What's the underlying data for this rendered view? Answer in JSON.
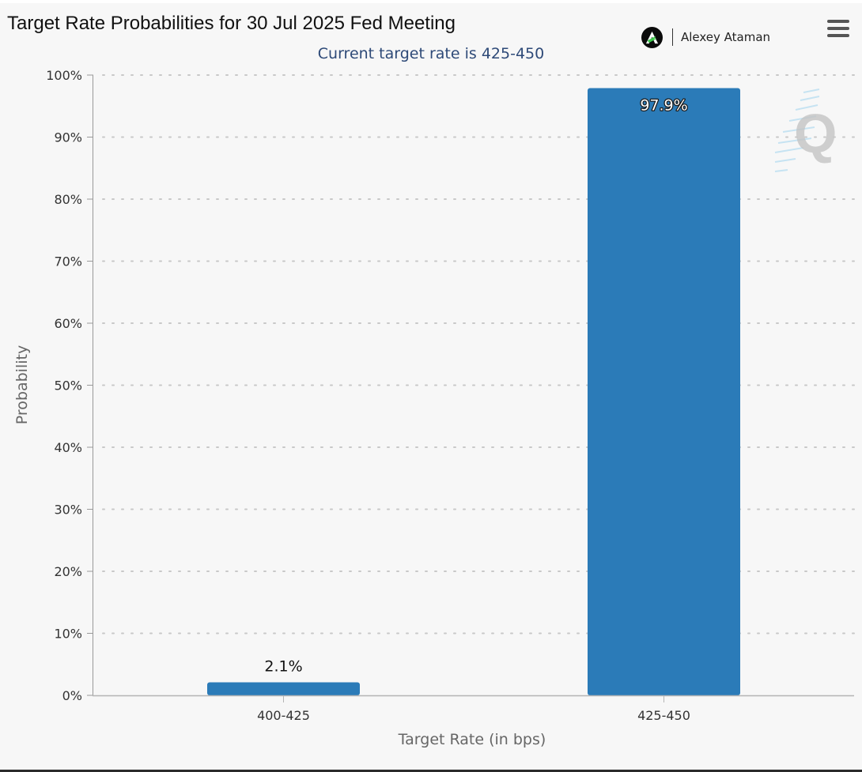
{
  "header": {
    "title": "Target Rate Probabilities for 30 Jul 2025 Fed Meeting",
    "author_name": "Alexey Ataman",
    "watermark_letter": "Q",
    "menu_icon": "hamburger-menu-icon"
  },
  "colors": {
    "bar": "#2b7bb8",
    "subtitle": "#2e4a78",
    "background": "#f7f7f7"
  },
  "chart_data": {
    "type": "bar",
    "title": "Target Rate Probabilities for 30 Jul 2025 Fed Meeting",
    "subtitle": "Current target rate is 425-450",
    "xlabel": "Target Rate (in bps)",
    "ylabel": "Probability",
    "categories": [
      "400-425",
      "425-450"
    ],
    "values": [
      2.1,
      97.9
    ],
    "data_labels": [
      "2.1%",
      "97.9%"
    ],
    "ylim": [
      0,
      100
    ],
    "y_ticks": [
      0,
      10,
      20,
      30,
      40,
      50,
      60,
      70,
      80,
      90,
      100
    ],
    "y_tick_labels": [
      "0%",
      "10%",
      "20%",
      "30%",
      "40%",
      "50%",
      "60%",
      "70%",
      "80%",
      "90%",
      "100%"
    ],
    "grid": "horizontal-dotted",
    "legend": "none"
  }
}
